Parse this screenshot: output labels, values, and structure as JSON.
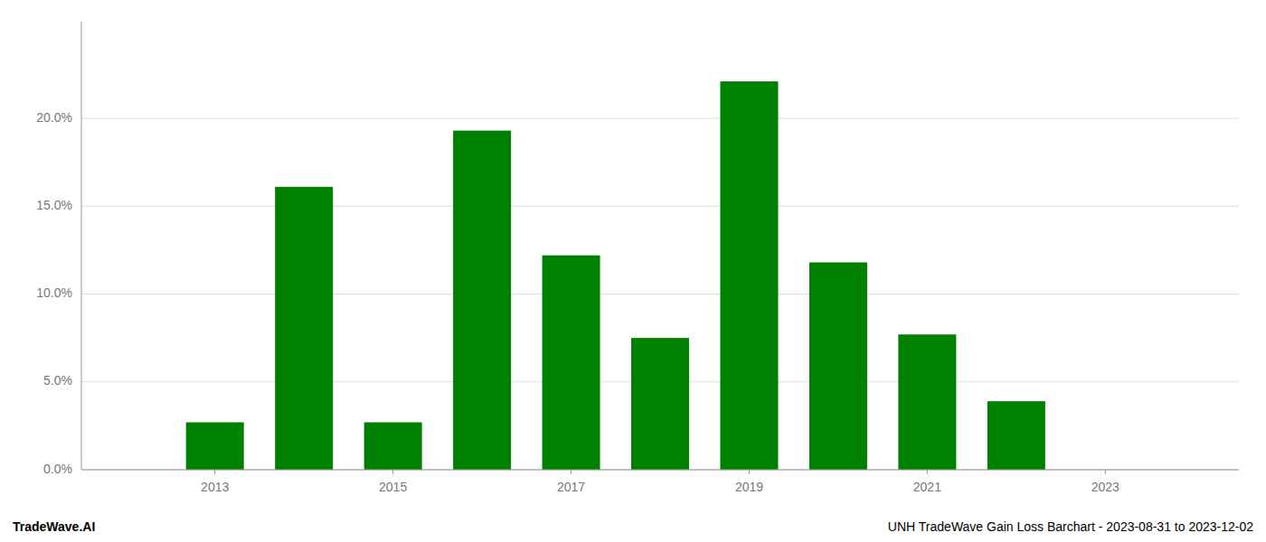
{
  "chart_data": {
    "type": "bar",
    "x": [
      2013,
      2014,
      2015,
      2016,
      2017,
      2018,
      2019,
      2020,
      2021,
      2022,
      2023
    ],
    "values": [
      0.027,
      0.161,
      0.027,
      0.193,
      0.122,
      0.075,
      0.221,
      0.118,
      0.077,
      0.039,
      0.0
    ],
    "color": "#008000",
    "xlim": [
      2011.5,
      2024.5
    ],
    "xticks": [
      2013,
      2015,
      2017,
      2019,
      2021,
      2023
    ],
    "ylim": [
      0,
      0.255
    ],
    "yticks": [
      {
        "value": 0.0,
        "label": "0.0%"
      },
      {
        "value": 0.05,
        "label": "5.0%"
      },
      {
        "value": 0.1,
        "label": "10.0%"
      },
      {
        "value": 0.15,
        "label": "15.0%"
      },
      {
        "value": 0.2,
        "label": "20.0%"
      }
    ],
    "grid": true,
    "annotations": [
      "TradeWave.AI",
      "UNH TradeWave Gain Loss Barchart - 2023-08-31 to 2023-12-02"
    ]
  }
}
